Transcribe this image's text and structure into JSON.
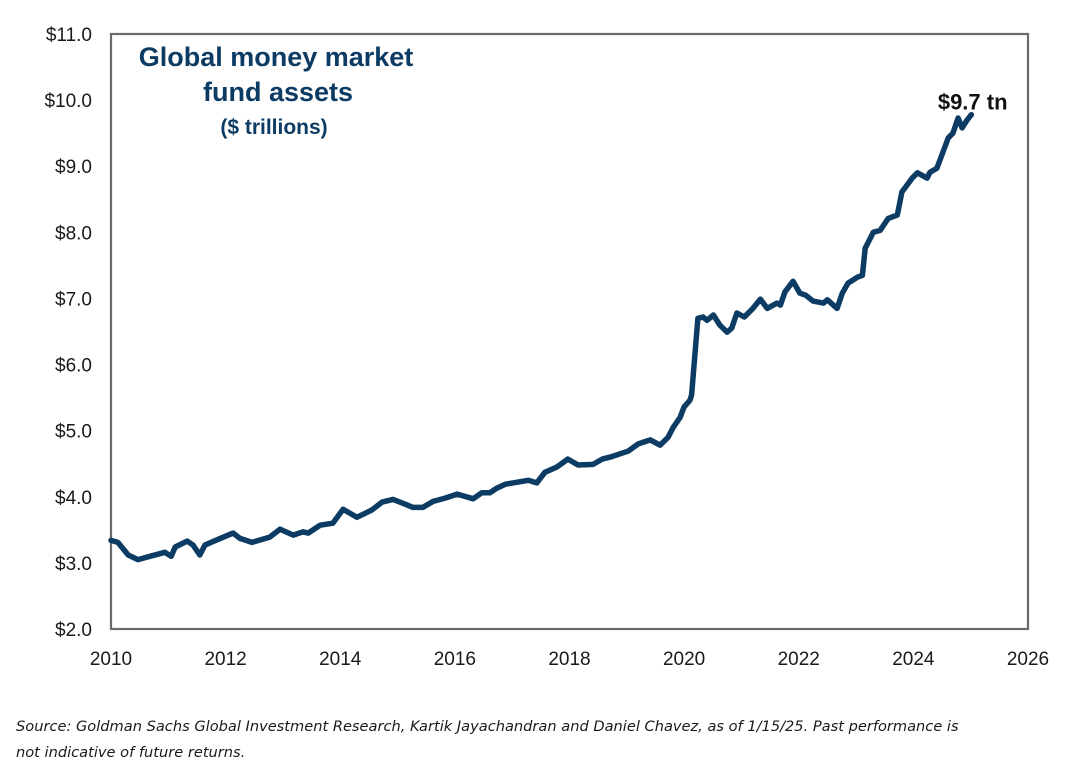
{
  "chart_data": {
    "type": "line",
    "title": "Global money market fund assets",
    "title_lines": [
      "Global money market",
      "fund assets"
    ],
    "subtitle": "($ trillions)",
    "xlabel": "",
    "ylabel": "",
    "xlim": [
      2010,
      2026
    ],
    "ylim": [
      2.0,
      11.0
    ],
    "x_ticks": [
      2010,
      2012,
      2014,
      2016,
      2018,
      2020,
      2022,
      2024,
      2026
    ],
    "x_tick_labels": [
      "2010",
      "2012",
      "2014",
      "2016",
      "2018",
      "2020",
      "2022",
      "2024",
      "2026"
    ],
    "y_ticks": [
      2,
      3,
      4,
      5,
      6,
      7,
      8,
      9,
      10,
      11
    ],
    "y_tick_labels": [
      "$2.0",
      "$3.0",
      "$4.0",
      "$5.0",
      "$6.0",
      "$7.0",
      "$8.0",
      "$9.0",
      "$10.0",
      "$11.0"
    ],
    "grid": false,
    "legend": "none",
    "line_color": "#0c3b63",
    "annotations": [
      {
        "text": "$9.7 tn",
        "x": 2025.0,
        "y": 9.75
      }
    ],
    "series": [
      {
        "name": "Global money market fund assets",
        "x": [
          2010.0,
          2010.12,
          2010.3,
          2010.47,
          2010.68,
          2010.94,
          2011.05,
          2011.12,
          2011.33,
          2011.43,
          2011.55,
          2011.64,
          2011.85,
          2012.13,
          2012.25,
          2012.46,
          2012.77,
          2012.95,
          2013.18,
          2013.35,
          2013.44,
          2013.65,
          2013.87,
          2014.05,
          2014.29,
          2014.55,
          2014.73,
          2014.92,
          2015.1,
          2015.27,
          2015.44,
          2015.62,
          2015.83,
          2016.04,
          2016.32,
          2016.47,
          2016.61,
          2016.73,
          2016.88,
          2017.09,
          2017.28,
          2017.43,
          2017.57,
          2017.78,
          2017.97,
          2018.15,
          2018.41,
          2018.57,
          2018.71,
          2019.02,
          2019.2,
          2019.41,
          2019.58,
          2019.72,
          2019.81,
          2019.93,
          2020.0,
          2020.1,
          2020.13,
          2020.24,
          2020.33,
          2020.4,
          2020.51,
          2020.62,
          2020.75,
          2020.83,
          2020.92,
          2021.05,
          2021.2,
          2021.33,
          2021.45,
          2021.62,
          2021.68,
          2021.76,
          2021.9,
          2022.02,
          2022.12,
          2022.25,
          2022.43,
          2022.5,
          2022.67,
          2022.76,
          2022.86,
          2023.02,
          2023.11,
          2023.16,
          2023.3,
          2023.42,
          2023.56,
          2023.72,
          2023.8,
          2023.98,
          2024.07,
          2024.24,
          2024.29,
          2024.41,
          2024.61,
          2024.69,
          2024.78,
          2024.85,
          2024.94,
          2025.01
        ],
        "y": [
          3.34,
          3.31,
          3.12,
          3.05,
          3.1,
          3.16,
          3.1,
          3.24,
          3.33,
          3.27,
          3.12,
          3.27,
          3.35,
          3.45,
          3.37,
          3.31,
          3.39,
          3.51,
          3.42,
          3.47,
          3.45,
          3.57,
          3.6,
          3.81,
          3.69,
          3.8,
          3.92,
          3.96,
          3.9,
          3.84,
          3.84,
          3.93,
          3.98,
          4.04,
          3.97,
          4.06,
          4.06,
          4.13,
          4.19,
          4.22,
          4.25,
          4.21,
          4.37,
          4.45,
          4.57,
          4.48,
          4.49,
          4.57,
          4.6,
          4.69,
          4.8,
          4.86,
          4.78,
          4.9,
          5.05,
          5.2,
          5.36,
          5.46,
          5.54,
          6.7,
          6.72,
          6.67,
          6.75,
          6.6,
          6.49,
          6.55,
          6.78,
          6.72,
          6.85,
          6.99,
          6.85,
          6.93,
          6.9,
          7.1,
          7.26,
          7.08,
          7.05,
          6.96,
          6.93,
          6.98,
          6.85,
          7.08,
          7.23,
          7.32,
          7.35,
          7.76,
          8.0,
          8.03,
          8.21,
          8.26,
          8.61,
          8.82,
          8.9,
          8.82,
          8.91,
          8.97,
          9.43,
          9.5,
          9.73,
          9.58,
          9.7,
          9.78
        ]
      }
    ]
  },
  "footer": {
    "source_line1": "Source: Goldman Sachs Global Investment Research, Kartik Jayachandran and Daniel Chavez,  as of 1/15/25. Past performance is",
    "source_line2": "not indicative of future returns."
  }
}
